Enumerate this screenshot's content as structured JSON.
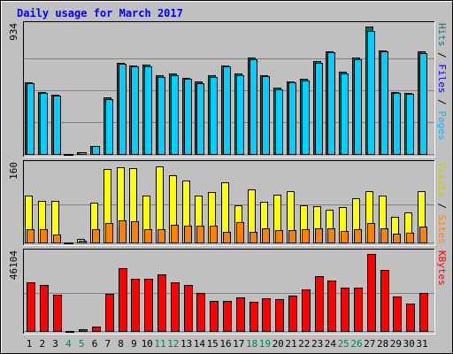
{
  "chart_data": {
    "type": "bar",
    "title": "Daily usage for March 2017",
    "categories": [
      "1",
      "2",
      "3",
      "4",
      "5",
      "6",
      "7",
      "8",
      "9",
      "10",
      "11",
      "12",
      "13",
      "14",
      "15",
      "16",
      "17",
      "18",
      "19",
      "20",
      "21",
      "22",
      "23",
      "24",
      "25",
      "26",
      "27",
      "28",
      "29",
      "30",
      "31"
    ],
    "weekend_days": [
      "4",
      "5",
      "11",
      "12",
      "18",
      "19",
      "25",
      "26"
    ],
    "panels": [
      {
        "id": "hits-panel",
        "max_label": "934",
        "ymax": 934,
        "side_labels": [
          {
            "text": "Hits",
            "color": "#008080"
          },
          {
            "text": " / ",
            "color": "#000000"
          },
          {
            "text": "Files",
            "color": "#0000ff"
          },
          {
            "text": " / ",
            "color": "#000000"
          },
          {
            "text": "Pages",
            "color": "#00bfff"
          }
        ],
        "series": [
          {
            "name": "Hits",
            "color": "#007060",
            "values": [
              525,
              455,
              435,
              0,
              5,
              60,
              415,
              670,
              650,
              655,
              575,
              590,
              560,
              530,
              575,
              650,
              590,
              705,
              580,
              485,
              535,
              550,
              680,
              755,
              600,
              705,
              934,
              760,
              455,
              450,
              750
            ]
          },
          {
            "name": "Files",
            "color": "#00cfff",
            "values": [
              520,
              450,
              430,
              0,
              5,
              60,
              405,
              660,
              640,
              645,
              565,
              580,
              550,
              520,
              565,
              640,
              580,
              695,
              570,
              475,
              525,
              540,
              670,
              745,
              590,
              695,
              900,
              750,
              445,
              440,
              740
            ]
          }
        ]
      },
      {
        "id": "visits-panel",
        "max_label": "160",
        "ymax": 160,
        "side_labels": [
          {
            "text": "Visits",
            "color": "#cccc00"
          },
          {
            "text": " / ",
            "color": "#000000"
          },
          {
            "text": "Sites",
            "color": "#ff8000"
          }
        ],
        "series": [
          {
            "name": "Visits",
            "color": "#ffff00",
            "values": [
              97,
              87,
              87,
              0,
              8,
              83,
              152,
              157,
              155,
              98,
              158,
              140,
              128,
              98,
              105,
              125,
              77,
              110,
              85,
              100,
              107,
              77,
              75,
              68,
              73,
              92,
              107,
              98,
              53,
              62,
              107
            ]
          },
          {
            "name": "Sites",
            "color": "#ff8000",
            "values": [
              27,
              28,
              17,
              0,
              3,
              27,
              40,
              46,
              45,
              28,
              28,
              37,
              35,
              35,
              35,
              22,
              42,
              22,
              30,
              25,
              25,
              28,
              30,
              30,
              24,
              28,
              40,
              30,
              18,
              20,
              33
            ]
          }
        ]
      },
      {
        "id": "kbytes-panel",
        "max_label": "46104",
        "ymax": 46104,
        "side_labels": [
          {
            "text": "KBytes",
            "color": "#ff0000"
          }
        ],
        "series": [
          {
            "name": "KBytes",
            "color": "#ff0000",
            "values": [
              29000,
              27800,
              21600,
              0,
              1000,
              2800,
              22400,
              37500,
              31200,
              31200,
              34100,
              29100,
              27700,
              23000,
              18100,
              18000,
              20200,
              17300,
              19700,
              19000,
              21000,
              24800,
              33000,
              30000,
              25800,
              26200,
              46104,
              36500,
              20500,
              16300,
              22600
            ]
          }
        ]
      }
    ]
  }
}
